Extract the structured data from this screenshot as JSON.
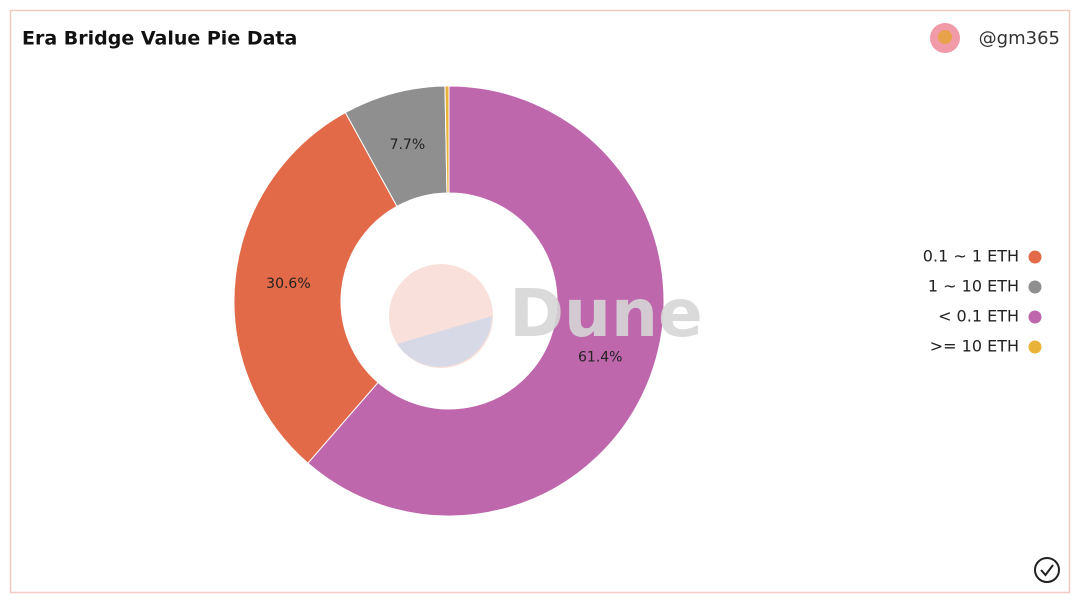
{
  "chart_data": {
    "type": "pie",
    "title": "Era Bridge Value Pie Data",
    "author": "@gm365",
    "watermark": "Dune",
    "categories": [
      "< 0.1 ETH",
      "0.1 ~ 1 ETH",
      "1 ~ 10 ETH",
      ">= 10 ETH"
    ],
    "values": [
      61.4,
      30.6,
      7.7,
      0.3
    ],
    "value_labels": [
      "61.4%",
      "30.6%",
      "7.7%",
      null
    ],
    "colors": [
      "#bf67ad",
      "#e36a48",
      "#8f8f8f",
      "#e9b33a"
    ],
    "legend": "right"
  }
}
